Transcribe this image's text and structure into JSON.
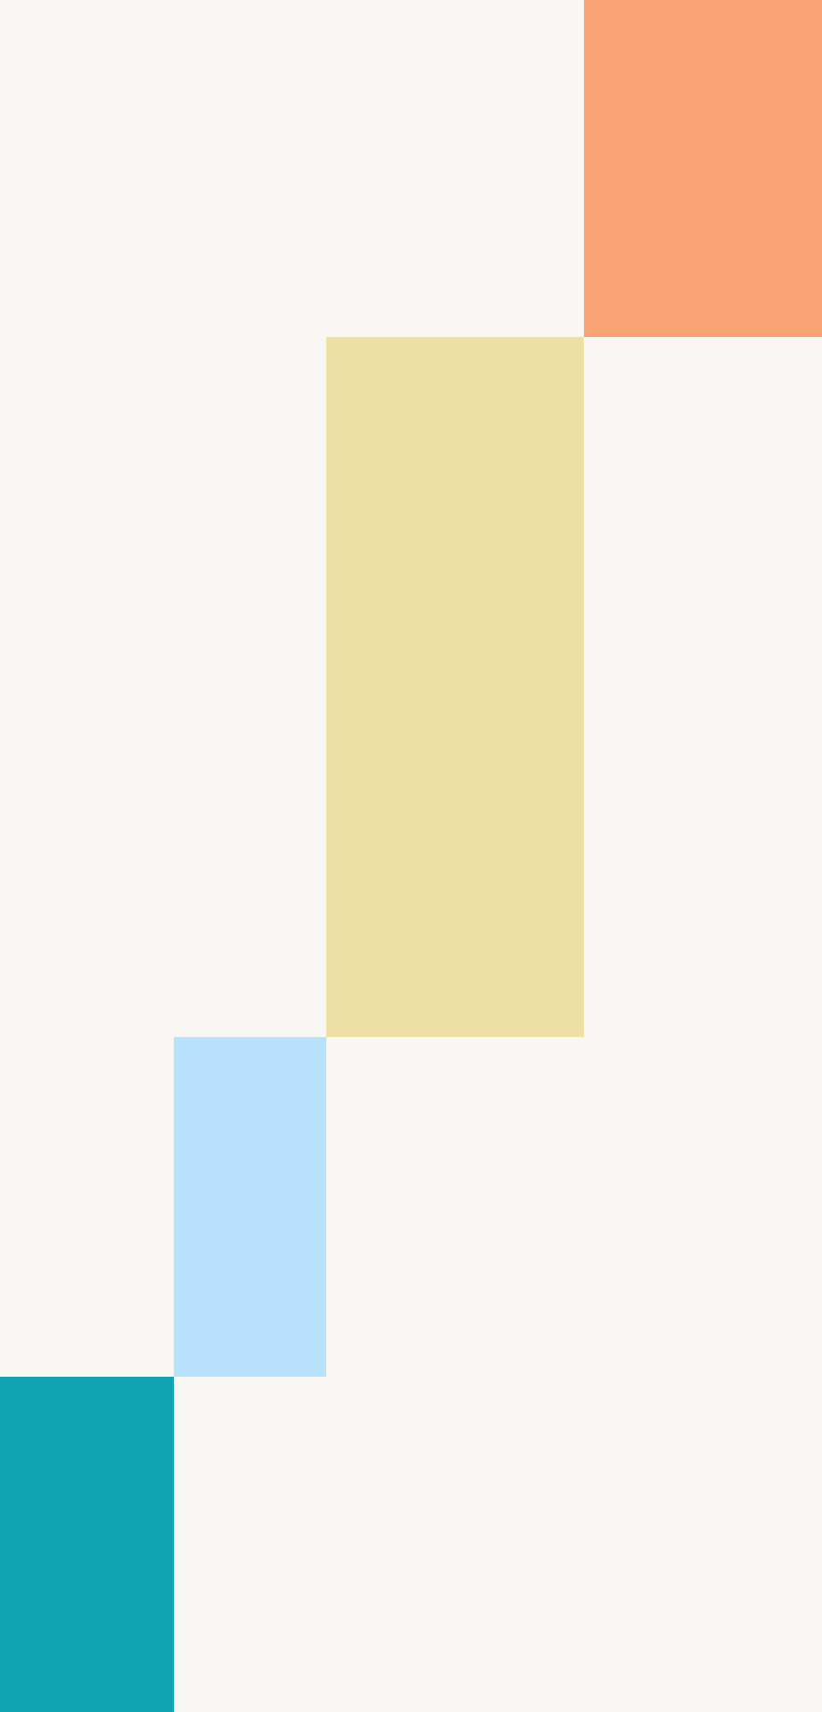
{
  "background_color": "#F9F7F4",
  "blocks": [
    {
      "id": "block-orange",
      "color": "#F8A474"
    },
    {
      "id": "block-yellow",
      "color": "#EDDFA6"
    },
    {
      "id": "block-blue",
      "color": "#B8E2FB"
    },
    {
      "id": "block-teal",
      "color": "#10A3B1"
    }
  ]
}
